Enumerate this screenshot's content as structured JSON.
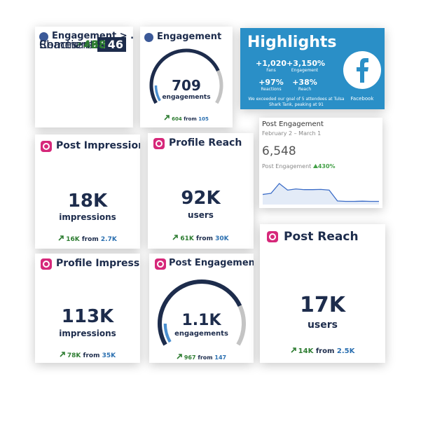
{
  "fb_engagement_table": {
    "title": "Engagement > ...",
    "rows": [
      {
        "label": "Reactions",
        "change": 498,
        "total": 591
      },
      {
        "label": "Comments",
        "change": 68,
        "total": 72
      },
      {
        "label": "Shares",
        "change": 38,
        "total": 46
      }
    ]
  },
  "fb_engagement_gauge": {
    "title": "Engagement",
    "value": 709,
    "unit": "engagements",
    "change": 604,
    "from": "from",
    "base": 105
  },
  "highlights": {
    "title": "Highlights",
    "stats": [
      {
        "value": "+1,020",
        "label": "Fans"
      },
      {
        "value": "+3,150%",
        "label": "Engagement"
      },
      {
        "value": "+97%",
        "label": "Reactions"
      },
      {
        "value": "+38%",
        "label": "Reach"
      }
    ],
    "note": "We exceeded our goal of 5 attendees at Tulsa Shark Tank, peaking at 91",
    "network": "Facebook"
  },
  "post_impressions": {
    "title": "Post Impressions",
    "value": "18K",
    "unit": "impressions",
    "change": "16K",
    "from": "from",
    "base": "2.7K"
  },
  "profile_reach": {
    "title": "Profile Reach",
    "value": "92K",
    "unit": "users",
    "change": "61K",
    "from": "from",
    "base": "30K"
  },
  "post_engagement_chart": {
    "title": "Post Engagement",
    "date_range": "February 2 – March 1",
    "value": "6,548",
    "metric": "Post Engagement",
    "change": "430%",
    "sparkline": [
      40,
      45,
      90,
      60,
      65,
      62,
      62,
      63,
      60,
      10,
      8,
      8,
      9,
      8,
      8
    ]
  },
  "profile_impressions": {
    "title": "Profile Impress...",
    "value": "113K",
    "unit": "impressions",
    "change": "78K",
    "from": "from",
    "base": "35K"
  },
  "ig_post_engagement": {
    "title": "Post Engagement",
    "value": "1.1K",
    "unit": "engagements",
    "change": 967,
    "from": "from",
    "base": 147
  },
  "post_reach": {
    "title": "Post Reach",
    "value": "17K",
    "unit": "users",
    "change": "14K",
    "from": "from",
    "base": "2.5K"
  }
}
